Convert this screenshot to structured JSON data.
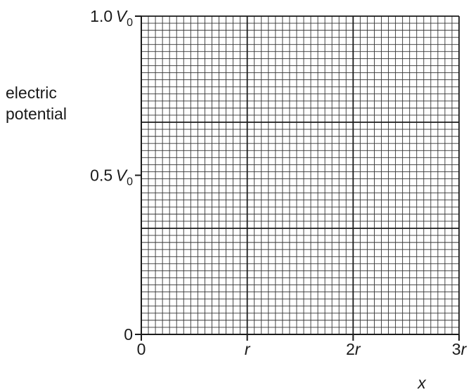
{
  "chart_data": {
    "type": "line",
    "ylabel": [
      "electric",
      "potential"
    ],
    "xlabel": "x",
    "xlim": [
      0,
      3
    ],
    "ylim": [
      0,
      1
    ],
    "x_ticks": [
      {
        "value": 0,
        "coef": "0",
        "sym": ""
      },
      {
        "value": 1,
        "coef": "",
        "sym": "r"
      },
      {
        "value": 2,
        "coef": "2",
        "sym": "r"
      },
      {
        "value": 3,
        "coef": "3",
        "sym": "r"
      }
    ],
    "y_ticks": [
      {
        "value": 0,
        "num": "0",
        "sym": "",
        "sub": ""
      },
      {
        "value": 0.5,
        "num": "0.5",
        "sym": "V",
        "sub": "0"
      },
      {
        "value": 1.0,
        "num": "1.0",
        "sym": "V",
        "sub": "0"
      }
    ],
    "grid": {
      "minor_x": 45,
      "minor_y": 45,
      "major_x": 3,
      "major_y": 3
    },
    "series": []
  }
}
